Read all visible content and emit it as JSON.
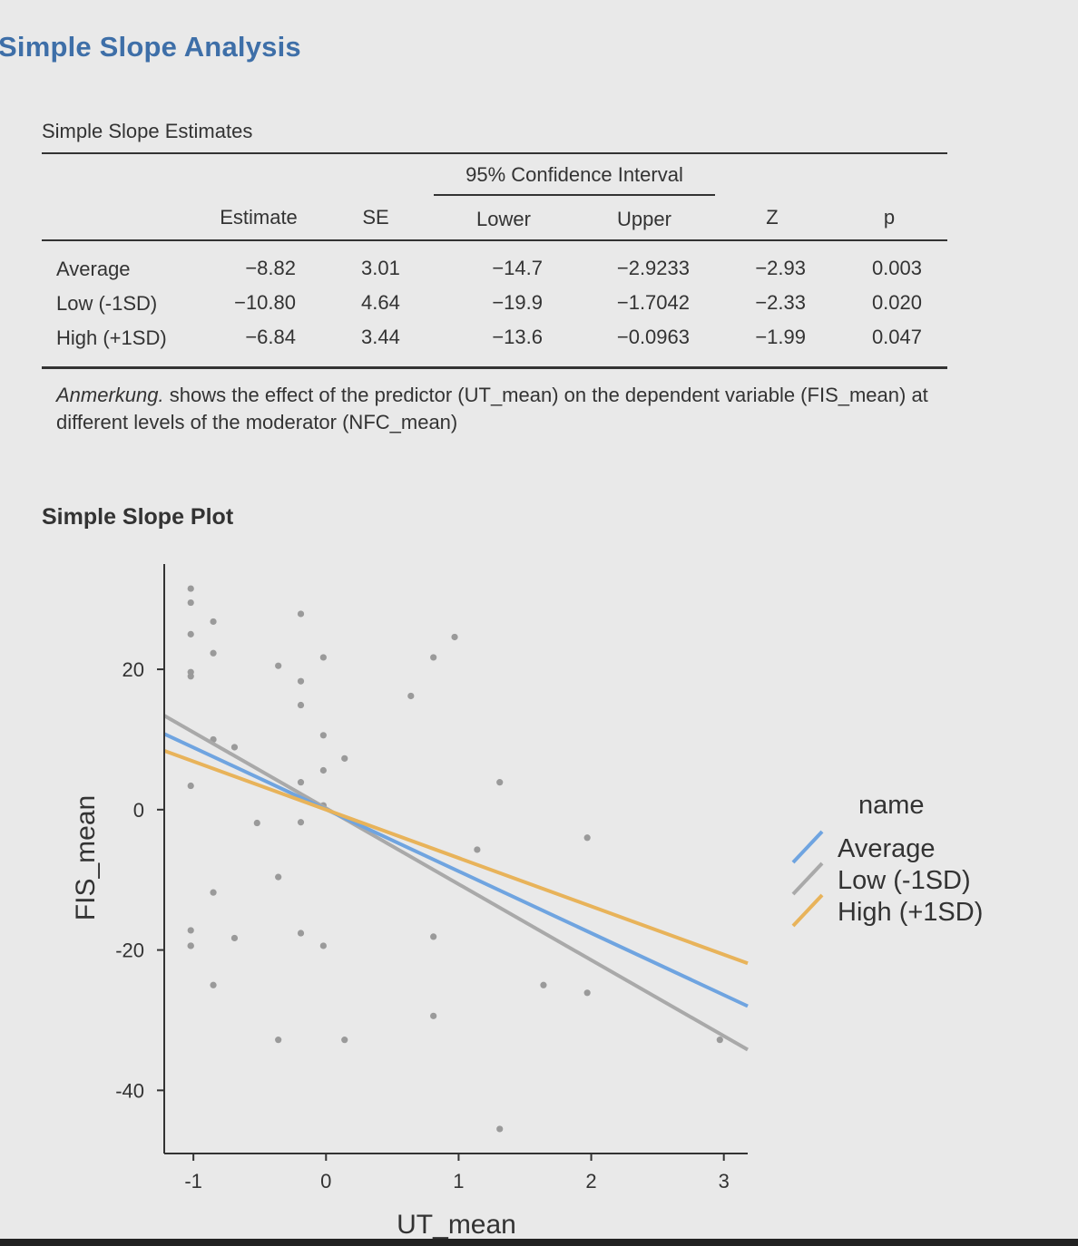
{
  "page": {
    "title": "Simple Slope Analysis"
  },
  "table": {
    "caption": "Simple Slope Estimates",
    "ci_header": "95% Confidence Interval",
    "headers": {
      "estimate": "Estimate",
      "se": "SE",
      "lower": "Lower",
      "upper": "Upper",
      "z": "Z",
      "p": "p"
    },
    "rows": [
      {
        "name": "Average",
        "estimate": "−8.82",
        "se": "3.01",
        "lower": "−14.7",
        "upper": "−2.9233",
        "z": "−2.93",
        "p": "0.003"
      },
      {
        "name": "Low (-1SD)",
        "estimate": "−10.80",
        "se": "4.64",
        "lower": "−19.9",
        "upper": "−1.7042",
        "z": "−2.33",
        "p": "0.020"
      },
      {
        "name": "High (+1SD)",
        "estimate": "−6.84",
        "se": "3.44",
        "lower": "−13.6",
        "upper": "−0.0963",
        "z": "−1.99",
        "p": "0.047"
      }
    ],
    "note_label": "Anmerkung.",
    "note_text": " shows the effect of the predictor (UT_mean) on the dependent variable (FIS_mean) at different levels of the moderator (NFC_mean)"
  },
  "plot": {
    "title": "Simple Slope Plot"
  },
  "chart_data": {
    "type": "scatter",
    "xlabel": "UT_mean",
    "ylabel": "FIS_mean",
    "xlim": [
      -1.22,
      3.18
    ],
    "ylim": [
      -49,
      35
    ],
    "x_ticks": [
      -1,
      0,
      1,
      2,
      3
    ],
    "y_ticks": [
      -40,
      -20,
      0,
      20
    ],
    "grid": false,
    "legend": {
      "title": "name",
      "placement": "right"
    },
    "lines": [
      {
        "name": "Average",
        "color": "#6fa4e0",
        "x": [
          -1.22,
          3.18
        ],
        "y": [
          10.8,
          -28.0
        ]
      },
      {
        "name": "Low (-1SD)",
        "color": "#a9a9a9",
        "x": [
          -1.22,
          3.18
        ],
        "y": [
          13.4,
          -34.2
        ]
      },
      {
        "name": "High (+1SD)",
        "color": "#e8b35a",
        "x": [
          -1.22,
          3.18
        ],
        "y": [
          8.4,
          -21.9
        ]
      }
    ],
    "points": {
      "color": "#9a9a9a",
      "x": [
        -1.02,
        -1.02,
        -1.02,
        -1.02,
        -1.02,
        -1.02,
        -0.85,
        -0.85,
        -0.85,
        -0.85,
        -0.69,
        -0.69,
        -1.02,
        -1.02,
        -1.02,
        -0.85,
        -0.52,
        -0.36,
        -0.36,
        -0.36,
        -0.19,
        -0.19,
        -0.19,
        -0.19,
        -0.19,
        -0.19,
        -0.02,
        -0.02,
        -0.02,
        -0.02,
        -0.02,
        0.14,
        0.14,
        0.64,
        0.81,
        0.81,
        0.81,
        0.97,
        1.14,
        1.31,
        1.31,
        1.64,
        1.97,
        1.97,
        2.97
      ],
      "y": [
        31.5,
        29.5,
        25.0,
        19.6,
        19.0,
        3.4,
        26.8,
        22.3,
        10.0,
        -11.8,
        8.9,
        -18.3,
        -17.2,
        -19.4,
        -19.4,
        -25.0,
        -1.9,
        20.5,
        -9.6,
        -32.8,
        27.9,
        18.3,
        14.9,
        3.9,
        -1.8,
        -17.6,
        21.7,
        10.6,
        5.6,
        0.6,
        -19.4,
        7.3,
        -32.8,
        16.2,
        21.7,
        -18.1,
        -29.4,
        24.6,
        -5.7,
        3.9,
        -45.5,
        -25.0,
        -4.0,
        -26.1,
        -32.8
      ]
    }
  }
}
